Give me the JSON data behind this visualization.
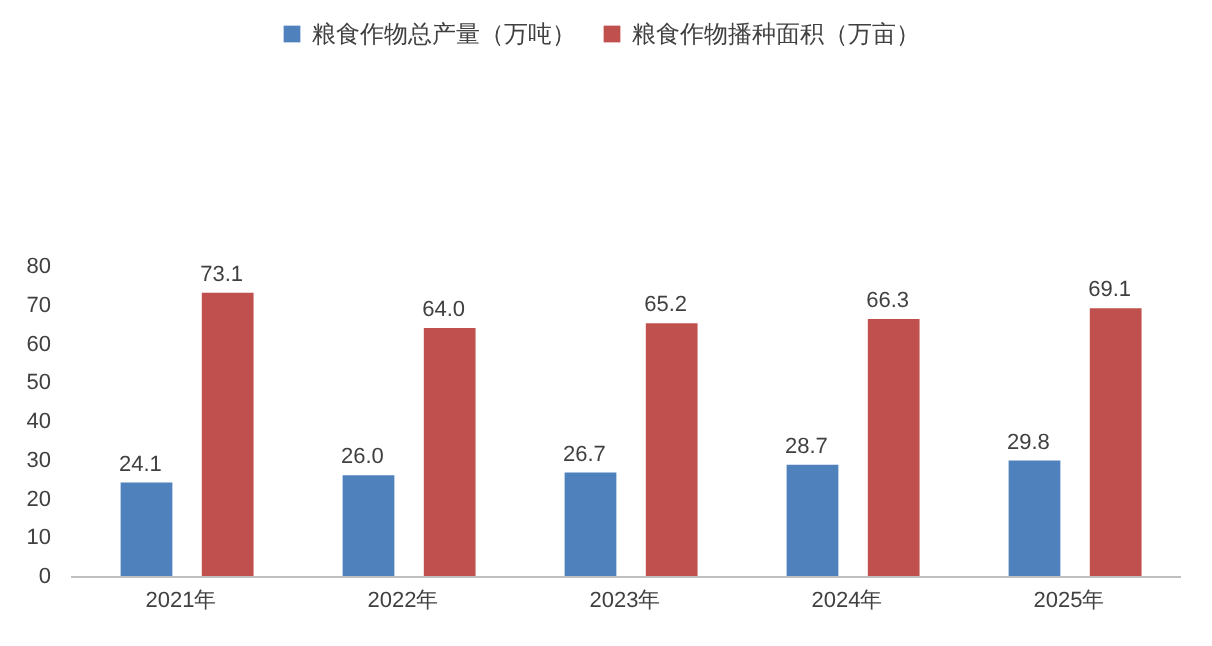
{
  "chart_data": {
    "type": "bar",
    "categories": [
      "2021年",
      "2022年",
      "2023年",
      "2024年",
      "2025年"
    ],
    "series": [
      {
        "name": "粮食作物总产量（万吨）",
        "color": "#4f81bd",
        "values": [
          24.1,
          26.0,
          26.7,
          28.7,
          29.8
        ],
        "value_labels": [
          "24.1",
          "26.0",
          "26.7",
          "28.7",
          "29.8"
        ]
      },
      {
        "name": "粮食作物播种面积（万亩）",
        "color": "#c0504d",
        "values": [
          73.1,
          64.0,
          65.2,
          66.3,
          69.1
        ],
        "value_labels": [
          "73.1",
          "64.0",
          "65.2",
          "66.3",
          "69.1"
        ]
      }
    ],
    "ylim": [
      0,
      80
    ],
    "yticks": [
      0,
      10,
      20,
      30,
      40,
      50,
      60,
      70,
      80
    ],
    "grid": false,
    "legend": "top",
    "data_labels": true
  }
}
